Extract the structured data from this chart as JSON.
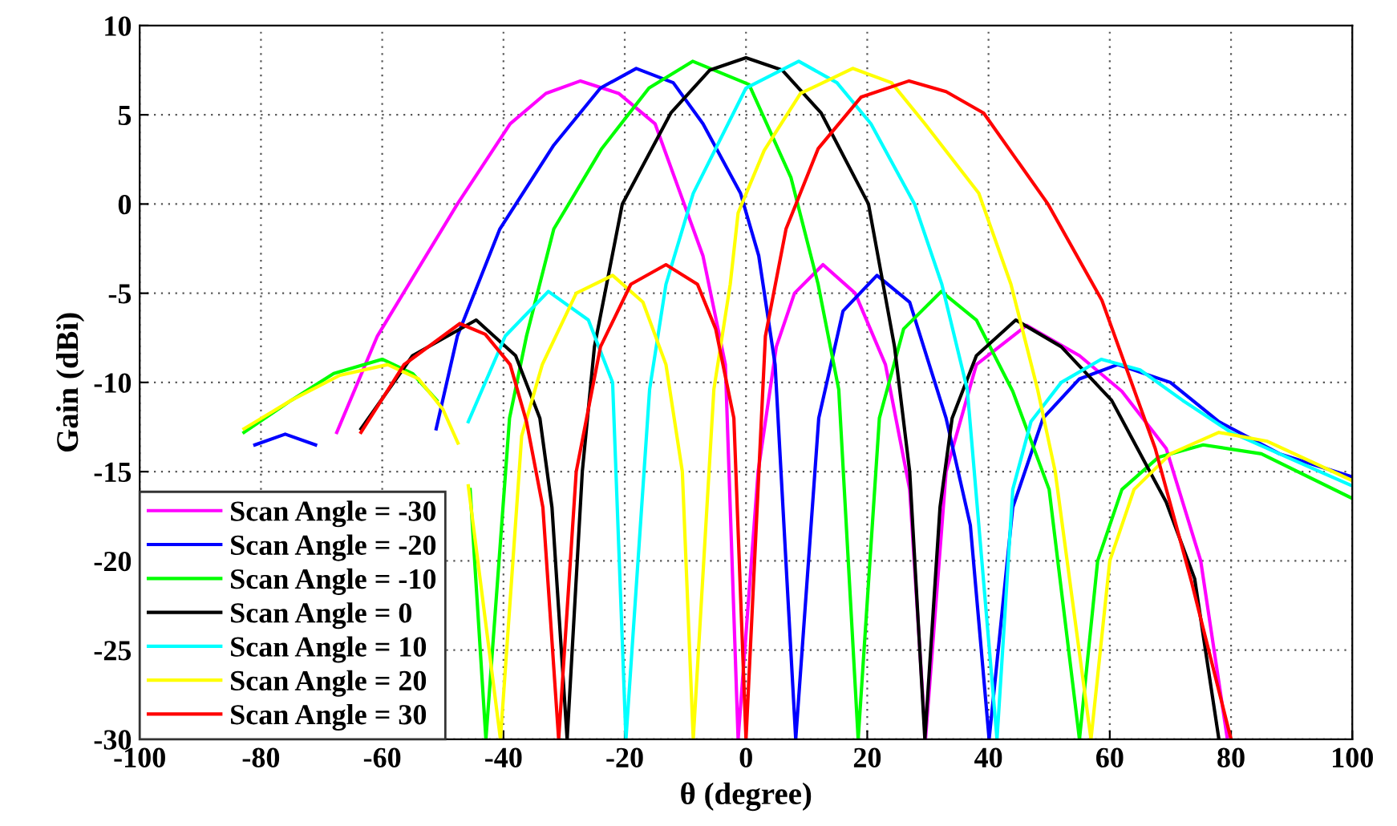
{
  "chart_data": {
    "type": "line",
    "xlabel": "θ (degree)",
    "ylabel": "Gain (dBi)",
    "xlim": [
      -100,
      100
    ],
    "ylim": [
      -30,
      10
    ],
    "xticks": [
      -100,
      -80,
      -60,
      -40,
      -20,
      0,
      20,
      40,
      60,
      80,
      100
    ],
    "yticks": [
      -30,
      -25,
      -20,
      -15,
      -10,
      -5,
      0,
      5,
      10
    ],
    "grid": true,
    "legend": "bottom left",
    "marker": "none",
    "line_style": "solid",
    "series": [
      {
        "name": "Scan Angle = -30",
        "color": "#ff00ff",
        "x": [
          -67.5,
          -60.8,
          -47.6,
          -38.9,
          -33,
          -27.3,
          -21,
          -15,
          -7.1,
          -3.4,
          -1.3,
          2,
          5,
          8,
          12.7,
          18,
          23,
          27,
          29.6,
          33,
          38,
          46.3,
          55,
          62,
          69.3,
          75,
          79.4
        ],
        "values": [
          -12.8,
          -7.4,
          0,
          4.5,
          6.2,
          6.9,
          6.2,
          4.5,
          -2.9,
          -9,
          -30,
          -15,
          -8,
          -5,
          -3.4,
          -5,
          -9,
          -16,
          -30,
          -15,
          -9,
          -6.8,
          -8.5,
          -10.5,
          -13.7,
          -20,
          -30
        ]
      },
      {
        "name": "Scan Angle = -20",
        "color": "#0000ff",
        "x": [
          -81,
          -76,
          -71,
          -62,
          -51.1,
          -47.6,
          -40.6,
          -31.7,
          -24,
          -18.1,
          -12,
          -7.1,
          -0.9,
          2.1,
          4.8,
          8.2,
          12,
          16,
          21.6,
          27,
          33,
          37,
          40.1,
          44,
          49,
          55,
          61.3,
          70,
          78,
          88,
          100
        ],
        "values": [
          -13.5,
          -12.9,
          -13.5,
          null,
          -12.6,
          -7.4,
          -1.4,
          3.3,
          6.5,
          7.6,
          6.8,
          4.5,
          0.6,
          -2.9,
          -9,
          -30,
          -12,
          -6,
          -4,
          -5.5,
          -12,
          -18,
          -30,
          -17,
          -12,
          -9.8,
          -9,
          -10,
          -12.2,
          -14,
          -15.3
        ]
      },
      {
        "name": "Scan Angle = -10",
        "color": "#00ff00",
        "x": [
          -82.8,
          -75,
          -68,
          -60,
          -55,
          -51,
          -47.5,
          -46.5,
          -45.5,
          -42.9,
          -39,
          -36.2,
          -31.7,
          -23.8,
          -16,
          -8.8,
          0.5,
          7.4,
          11.9,
          15.3,
          18.5,
          22,
          26,
          32.2,
          38,
          44,
          50,
          55,
          58,
          62,
          68,
          75.4,
          85,
          100
        ],
        "values": [
          -12.8,
          -11,
          -9.5,
          -8.7,
          -9.5,
          -11,
          null,
          null,
          -16,
          -30,
          -12,
          -7.4,
          -1.4,
          3.1,
          6.5,
          8.0,
          6.7,
          1.5,
          -4.5,
          -10.4,
          -30,
          -12,
          -7,
          -4.9,
          -6.5,
          -10.5,
          -16,
          -30,
          -20,
          -16,
          -14.2,
          -13.5,
          -14,
          -16.5
        ]
      },
      {
        "name": "Scan Angle = 0",
        "color": "#000000",
        "x": [
          -63.5,
          -55,
          -44.5,
          -38,
          -34,
          -32,
          -29.5,
          -27,
          -25,
          -20.4,
          -12.4,
          -6,
          0,
          6,
          12.4,
          20.2,
          24.5,
          27,
          29.5,
          32,
          34,
          38,
          44.5,
          52,
          60.3,
          69.3,
          74,
          78
        ],
        "values": [
          -12.6,
          -8.5,
          -6.5,
          -8.5,
          -12,
          -17,
          -30,
          -15,
          -8,
          0,
          5.1,
          7.5,
          8.2,
          7.5,
          5.1,
          0,
          -8,
          -15,
          -30,
          -17,
          -12,
          -8.5,
          -6.5,
          -8,
          -11,
          -16.7,
          -21,
          -30
        ]
      },
      {
        "name": "Scan Angle = 10",
        "color": "#00ffff",
        "x": [
          -45.8,
          -39.7,
          -32.6,
          -26,
          -22,
          -19.8,
          -15.9,
          -13.2,
          -8.7,
          0,
          8.7,
          15,
          20.6,
          27.8,
          32.3,
          36.5,
          41.4,
          44,
          47,
          52,
          58.6,
          65,
          72,
          80,
          90,
          100
        ],
        "values": [
          -12.2,
          -7.4,
          -4.9,
          -6.5,
          -10,
          -30,
          -10.4,
          -4.5,
          0.6,
          6.5,
          8.0,
          6.8,
          4.5,
          0,
          -4.5,
          -10.4,
          -30,
          -16,
          -12.2,
          -10,
          -8.7,
          -9.3,
          -11,
          -12.8,
          -14.3,
          -15.8
        ]
      },
      {
        "name": "Scan Angle = 20",
        "color": "#ffff00",
        "x": [
          -82.8,
          -75,
          -67,
          -59.1,
          -54,
          -50,
          -47.5,
          -46.5,
          -45.8,
          -40.5,
          -37,
          -33.6,
          -28,
          -22,
          -17,
          -13.2,
          -10.5,
          -8.7,
          -5.3,
          -2.6,
          -1.3,
          3,
          9,
          17.6,
          24,
          29.5,
          38.4,
          43.7,
          48.1,
          51,
          56.9,
          60,
          64,
          70,
          78,
          86,
          100
        ],
        "values": [
          -12.6,
          -11,
          -9.6,
          -9,
          -9.8,
          -11.5,
          -13.4,
          null,
          -15.8,
          -30,
          -13,
          -9,
          -5,
          -4,
          -5.5,
          -9,
          -15,
          -30,
          -10.4,
          -4.5,
          -0.5,
          3,
          6.2,
          7.6,
          6.8,
          4.5,
          0.6,
          -4.5,
          -10.4,
          -15,
          -30,
          -20,
          -16,
          -14,
          -12.8,
          -13.3,
          -15.5
        ]
      },
      {
        "name": "Scan Angle = 30",
        "color": "#ff0000",
        "x": [
          -63.5,
          -56.4,
          -47.2,
          -43,
          -38.9,
          -36.2,
          -33.5,
          -30.9,
          -28,
          -24,
          -19,
          -13.2,
          -8,
          -5,
          -2,
          0,
          3.2,
          6.6,
          11.9,
          19,
          26.9,
          33,
          39.2,
          49.8,
          58.7,
          67.5,
          73.5,
          80
        ],
        "values": [
          -12.8,
          -9,
          -6.7,
          -7.3,
          -9,
          -12.2,
          -17,
          -30,
          -15,
          -8,
          -4.5,
          -3.4,
          -4.5,
          -7,
          -12,
          -30,
          -7.4,
          -1.4,
          3.1,
          6,
          6.9,
          6.3,
          5.1,
          0,
          -5.4,
          -13.7,
          -21.2,
          -30
        ]
      }
    ]
  }
}
